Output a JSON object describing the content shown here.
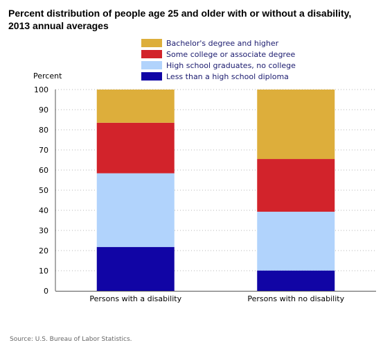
{
  "chart_data": {
    "type": "bar",
    "stacked": true,
    "title": "Percent distribution of people age 25 and older with or without a disability, 2013 annual averages",
    "ylabel": "Percent",
    "xlabel": "",
    "ylim": [
      0,
      100
    ],
    "yticks": [
      0,
      10,
      20,
      30,
      40,
      50,
      60,
      70,
      80,
      90,
      100
    ],
    "grid": true,
    "legend_position": "top",
    "categories": [
      "Persons with a disability",
      "Persons with no disability"
    ],
    "series": [
      {
        "name": "Less than a high school diploma",
        "color": "#1105a5",
        "values": [
          21.8,
          10.1
        ]
      },
      {
        "name": "High school graduates, no college",
        "color": "#b1d3fc",
        "values": [
          36.6,
          29.2
        ]
      },
      {
        "name": "Some college or associate degree",
        "color": "#d2232b",
        "values": [
          25.1,
          26.2
        ]
      },
      {
        "name": "Bachelor's degree and higher",
        "color": "#ddae3b",
        "values": [
          16.5,
          34.5
        ]
      }
    ],
    "legend_order": [
      "Bachelor's degree and higher",
      "Some college or associate degree",
      "High school graduates, no college",
      "Less than a high school diploma"
    ],
    "source": "Source: U.S. Bureau of Labor Statistics."
  }
}
